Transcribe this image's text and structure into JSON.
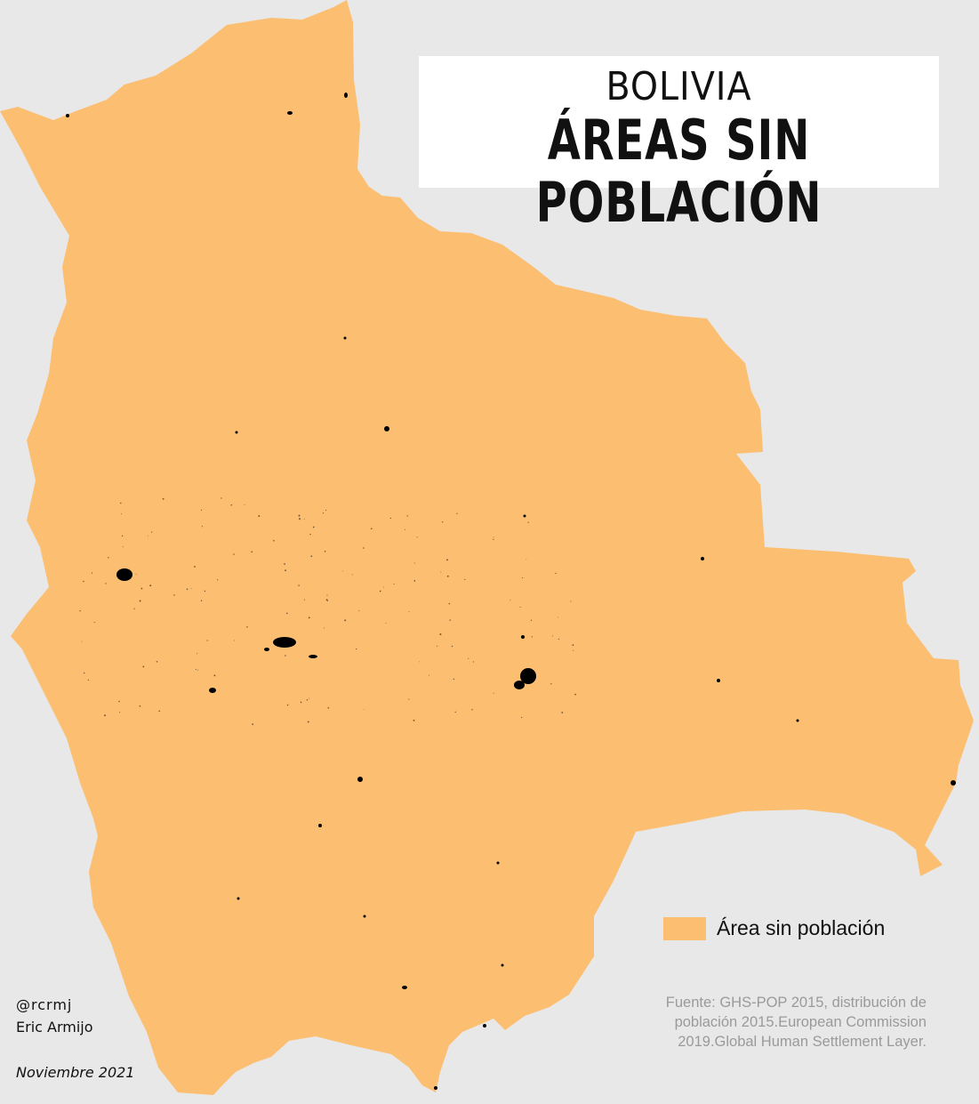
{
  "title": {
    "country": "BOLIVIA",
    "subtitle": "ÁREAS SIN POBLACIÓN"
  },
  "legend": {
    "label": "Área sin población",
    "color": "#fcbe70"
  },
  "colors": {
    "background": "#e8e8e8",
    "land": "#fcbe70",
    "populated": "#000000"
  },
  "source": "Fuente: GHS-POP 2015, distribución de población 2015.European Commission 2019.Global Human Settlement Layer.",
  "credits": {
    "handle": "@rcrmj",
    "author": "Eric Armijo",
    "date": "Noviembre 2021"
  }
}
